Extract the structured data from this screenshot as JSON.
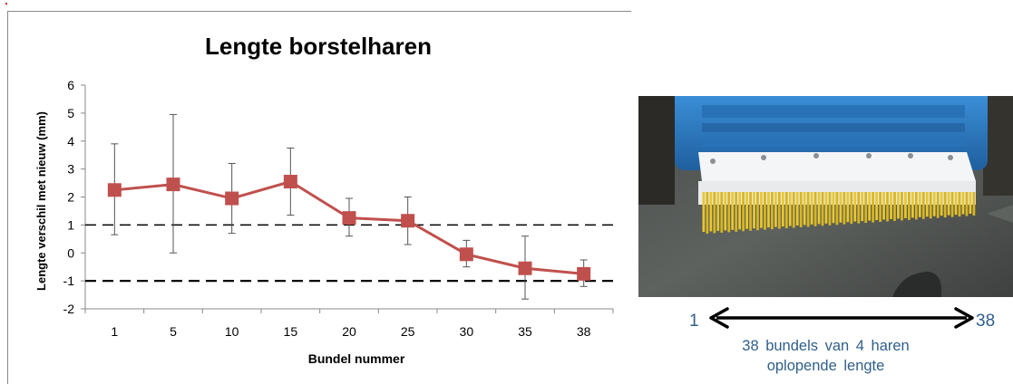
{
  "chart_data": {
    "type": "line",
    "title": "Lengte borstelharen",
    "xlabel": "Bundel nummer",
    "ylabel": "Lengte verschil met nieuw (mm)",
    "categories": [
      "1",
      "5",
      "10",
      "15",
      "20",
      "25",
      "30",
      "35",
      "38"
    ],
    "series": [
      {
        "values": [
          2.25,
          2.45,
          1.95,
          2.55,
          1.25,
          1.15,
          -0.05,
          -0.55,
          -0.75
        ],
        "error_high": [
          3.9,
          4.95,
          3.2,
          3.75,
          1.95,
          2.0,
          0.45,
          0.6,
          -0.25
        ],
        "error_low": [
          0.65,
          0.0,
          0.7,
          1.35,
          0.6,
          0.3,
          -0.5,
          -1.65,
          -1.2
        ]
      }
    ],
    "ylim": [
      -2,
      6
    ],
    "yticks": [
      -2,
      -1,
      0,
      1,
      2,
      3,
      4,
      5,
      6
    ],
    "reference_lines": [
      1,
      -1
    ],
    "series_color": "#c0504d",
    "grid": false
  },
  "photo_labels": {
    "range_start": "1",
    "range_end": "38",
    "caption_line1": "38 bundels van 4 haren",
    "caption_line2": "oplopende lengte"
  },
  "colors": {
    "label_blue": "#2f5f8a",
    "brush_yellow": "#e8c830",
    "brush_blue": "#2c7fc8"
  }
}
